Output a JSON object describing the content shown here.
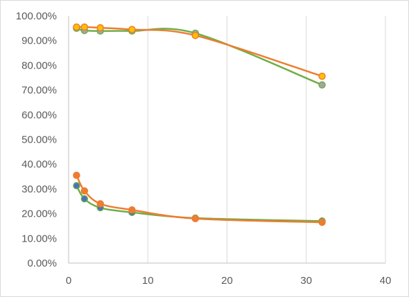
{
  "chart_data": {
    "type": "scatter",
    "title": "",
    "xlabel": "",
    "ylabel": "",
    "xlim": [
      0,
      40
    ],
    "ylim": [
      0,
      1
    ],
    "x_ticks": [
      0,
      10,
      20,
      30,
      40
    ],
    "x_tick_labels": [
      "0",
      "10",
      "20",
      "30",
      "40"
    ],
    "y_ticks": [
      0,
      0.1,
      0.2,
      0.3,
      0.4,
      0.5,
      0.6,
      0.7,
      0.8,
      0.9,
      1.0
    ],
    "y_tick_labels": [
      "0.00%",
      "10.00%",
      "20.00%",
      "30.00%",
      "40.00%",
      "50.00%",
      "60.00%",
      "70.00%",
      "80.00%",
      "90.00%",
      "100.00%"
    ],
    "grid": "vertical",
    "legend": "none",
    "smooth_lines": true,
    "series": [
      {
        "x": [
          1,
          2,
          4,
          8,
          16,
          32
        ],
        "y": [
          0.95,
          0.941,
          0.939,
          0.939,
          0.93,
          0.721
        ],
        "line_color": "#70ad47",
        "marker_color": "#a5a5a5"
      },
      {
        "x": [
          1,
          2,
          4,
          8,
          16,
          32
        ],
        "y": [
          0.955,
          0.955,
          0.952,
          0.945,
          0.921,
          0.756
        ],
        "line_color": "#ed7d31",
        "marker_color": "#ffc000"
      },
      {
        "x": [
          1,
          2,
          4,
          8,
          16,
          32
        ],
        "y": [
          0.313,
          0.26,
          0.224,
          0.205,
          0.182,
          0.17
        ],
        "line_color": "#70ad47",
        "marker_color": "#4472c4"
      },
      {
        "x": [
          1,
          2,
          4,
          8,
          16,
          32
        ],
        "y": [
          0.355,
          0.292,
          0.24,
          0.215,
          0.18,
          0.165
        ],
        "line_color": "#ed7d31",
        "marker_color": "#ed7d31"
      }
    ]
  }
}
